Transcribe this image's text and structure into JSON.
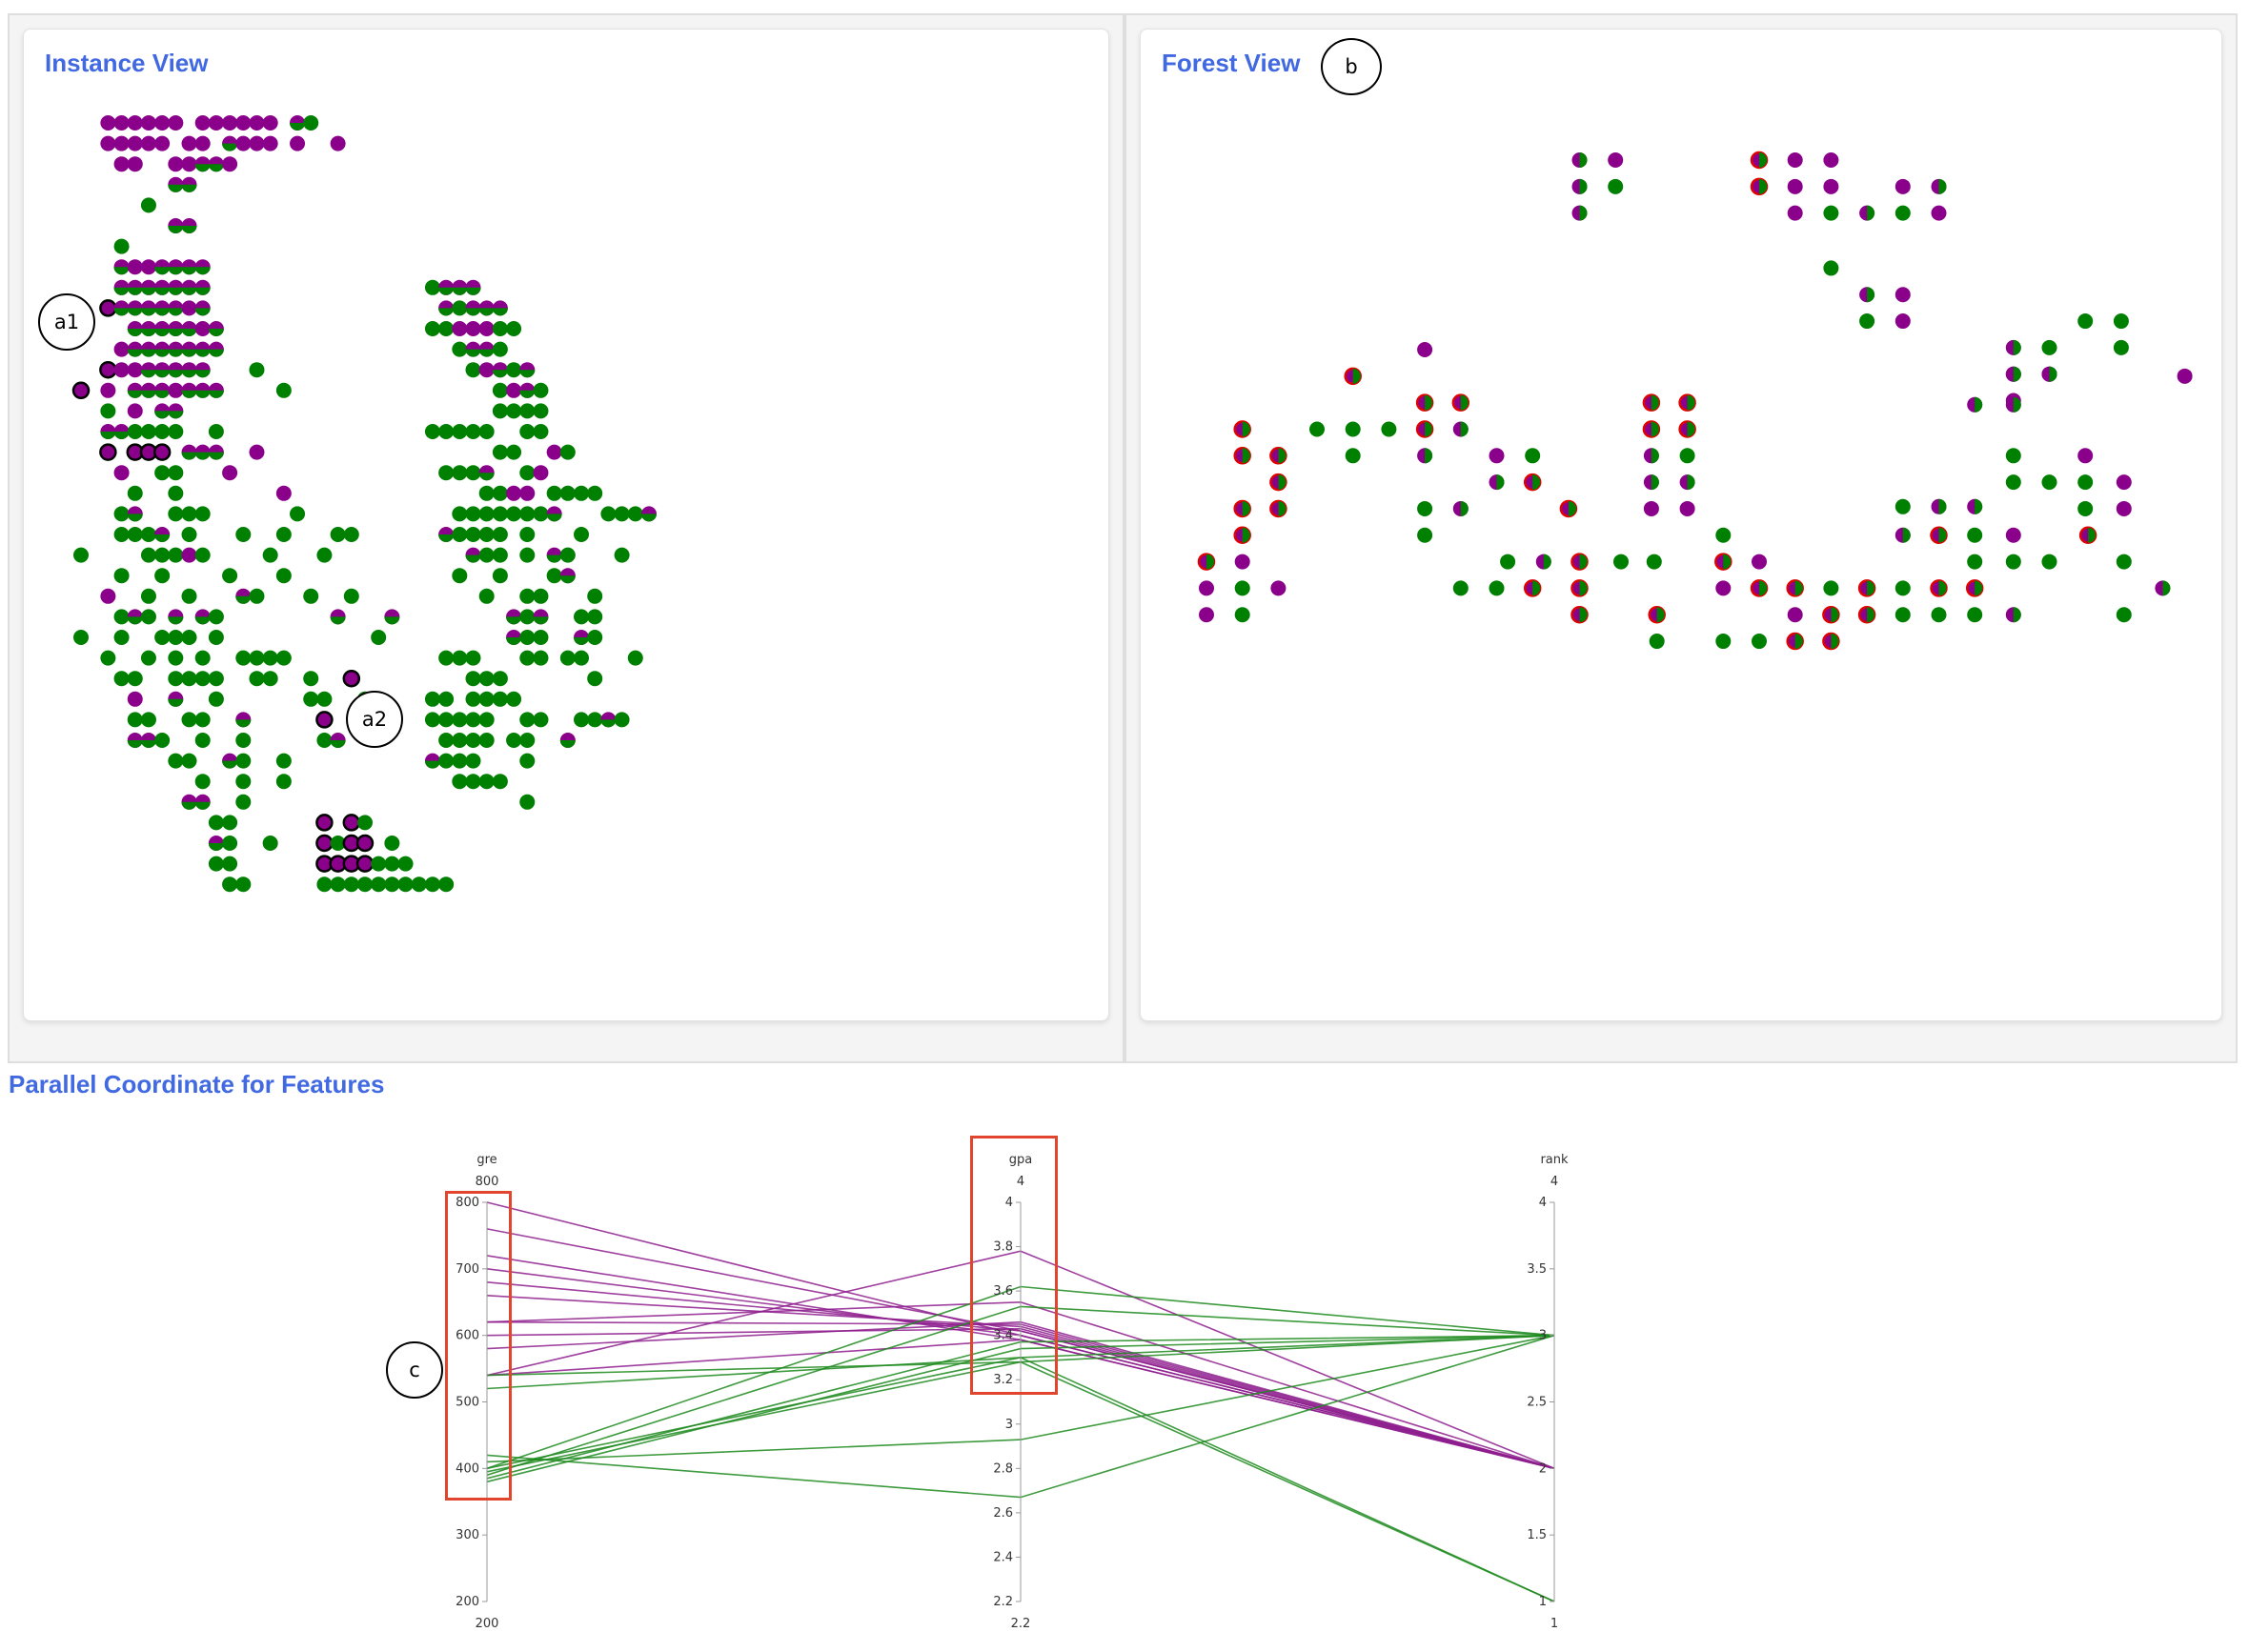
{
  "panels": {
    "instance_view": {
      "title": "Instance View"
    },
    "forest_view": {
      "title": "Forest View"
    },
    "parallel": {
      "title": "Parallel Coordinate for Features"
    }
  },
  "markers": {
    "a1": "a1",
    "a2": "a2",
    "b": "b",
    "c": "c"
  },
  "colors": {
    "admit": "#008000",
    "reject": "#8b008b",
    "highlight": "#e00000",
    "title": "#4169e1"
  },
  "chart_data": [
    {
      "type": "scatter",
      "title": "Instance View",
      "note": "grid of instance glyphs; colours: green and purple; some outlined in black"
    },
    {
      "type": "scatter",
      "title": "Forest View",
      "note": "tree glyphs; colours: green and purple; some outlined in red"
    },
    {
      "type": "parallel",
      "title": "Parallel Coordinate for Features",
      "axes": [
        {
          "name": "gre",
          "min": 200,
          "max": 800,
          "range_labels": [
            "800",
            "200"
          ],
          "ticks": [
            200,
            300,
            400,
            500,
            600,
            700,
            800
          ]
        },
        {
          "name": "gpa",
          "min": 2.2,
          "max": 4,
          "range_labels": [
            "4",
            "2.2"
          ],
          "ticks": [
            2.2,
            2.4,
            2.6,
            2.8,
            3,
            3.2,
            3.4,
            3.6,
            3.8,
            4
          ]
        },
        {
          "name": "rank",
          "min": 1,
          "max": 4,
          "range_labels": [
            "4",
            "1"
          ],
          "ticks": [
            1,
            1.5,
            2,
            2.5,
            3,
            3.5,
            4
          ]
        }
      ],
      "tick_labels": {
        "gre": [
          "200",
          "300",
          "400",
          "500",
          "600",
          "700",
          "800"
        ],
        "gpa": [
          "2.2",
          "2.4",
          "2.6",
          "2.8",
          "3",
          "3.2",
          "3.4",
          "3.6",
          "3.8",
          "4"
        ],
        "rank": [
          "1",
          "1.5",
          "2",
          "2.5",
          "3",
          "3.5",
          "4"
        ]
      },
      "lines": [
        {
          "color": "purple",
          "values": [
            800,
            3.4,
            2
          ]
        },
        {
          "color": "purple",
          "values": [
            760,
            3.42,
            2
          ]
        },
        {
          "color": "purple",
          "values": [
            720,
            3.38,
            2
          ]
        },
        {
          "color": "purple",
          "values": [
            700,
            3.4,
            2
          ]
        },
        {
          "color": "purple",
          "values": [
            680,
            3.42,
            2
          ]
        },
        {
          "color": "purple",
          "values": [
            660,
            3.44,
            2
          ]
        },
        {
          "color": "purple",
          "values": [
            620,
            3.45,
            2
          ]
        },
        {
          "color": "purple",
          "values": [
            620,
            3.55,
            2
          ]
        },
        {
          "color": "purple",
          "values": [
            600,
            3.43,
            2
          ]
        },
        {
          "color": "purple",
          "values": [
            580,
            3.46,
            2
          ]
        },
        {
          "color": "purple",
          "values": [
            540,
            3.78,
            2
          ]
        },
        {
          "color": "purple",
          "values": [
            540,
            3.38,
            2
          ]
        },
        {
          "color": "green",
          "values": [
            540,
            3.28,
            3
          ]
        },
        {
          "color": "green",
          "values": [
            520,
            3.3,
            3
          ]
        },
        {
          "color": "green",
          "values": [
            420,
            2.67,
            3
          ]
        },
        {
          "color": "green",
          "values": [
            410,
            2.93,
            3
          ]
        },
        {
          "color": "green",
          "values": [
            400,
            3.62,
            3
          ]
        },
        {
          "color": "green",
          "values": [
            400,
            3.3,
            1
          ]
        },
        {
          "color": "green",
          "values": [
            395,
            3.28,
            1
          ]
        },
        {
          "color": "green",
          "values": [
            390,
            3.53,
            3
          ]
        },
        {
          "color": "green",
          "values": [
            385,
            3.37,
            3
          ]
        },
        {
          "color": "green",
          "values": [
            380,
            3.34,
            3
          ]
        }
      ]
    }
  ]
}
